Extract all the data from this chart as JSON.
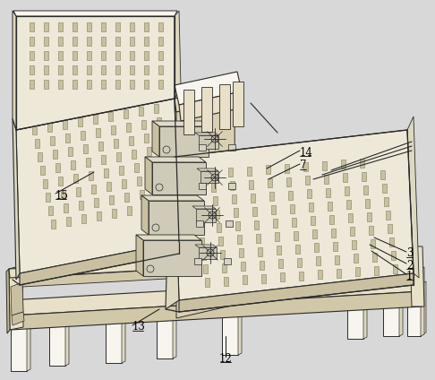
{
  "bg_color": "#d8d8d8",
  "lc": "#2a2a2a",
  "fill_white": "#f8f5ee",
  "fill_light": "#ede8d8",
  "fill_mid": "#c8c0a0",
  "fill_dark": "#a89870",
  "fill_side": "#ddd8c0",
  "fill_frame": "#e8e0c8",
  "fill_frame_side": "#c0b890",
  "fill_frame_front": "#d0c8a8"
}
